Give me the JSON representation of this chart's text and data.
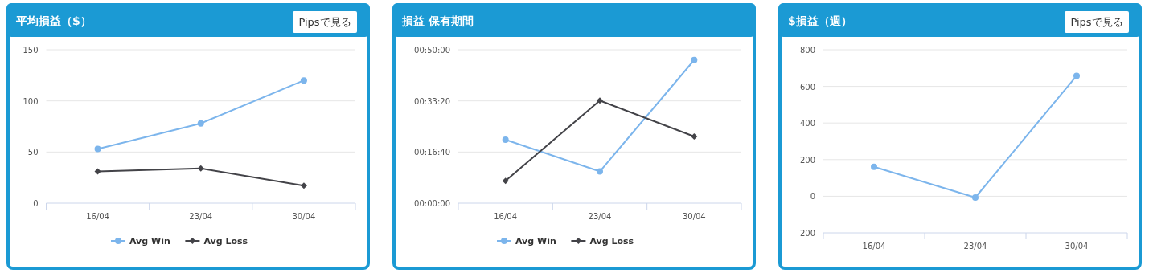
{
  "chart_data": [
    {
      "type": "line",
      "title": "平均損益（$）",
      "annotations": [
        "Pipsで見る"
      ],
      "categories": [
        "16/04",
        "23/04",
        "30/04"
      ],
      "ylim": [
        0,
        150
      ],
      "yticks": [
        0,
        50,
        100,
        150
      ],
      "grid": "y",
      "legend": "bottom",
      "series": [
        {
          "name": "Avg Win",
          "color": "#7cb5ec",
          "marker": "circle",
          "values": [
            53,
            78,
            120
          ]
        },
        {
          "name": "Avg Loss",
          "color": "#434348",
          "marker": "diamond",
          "values": [
            31,
            34,
            17
          ]
        }
      ]
    },
    {
      "type": "line",
      "title": "損益 保有期間",
      "categories": [
        "16/04",
        "23/04",
        "30/04"
      ],
      "ylim": [
        0,
        3000
      ],
      "yticks": [
        {
          "value": 0,
          "label": "00:00:00"
        },
        {
          "value": 1000,
          "label": "00:16:40"
        },
        {
          "value": 2000,
          "label": "00:33:20"
        },
        {
          "value": 3000,
          "label": "00:50:00"
        }
      ],
      "grid": "y",
      "legend": "bottom",
      "series": [
        {
          "name": "Avg Win",
          "color": "#7cb5ec",
          "marker": "circle",
          "values": [
            1240,
            620,
            2800
          ]
        },
        {
          "name": "Avg Loss",
          "color": "#434348",
          "marker": "diamond",
          "values": [
            436,
            2007,
            1303
          ]
        }
      ]
    },
    {
      "type": "line",
      "title": "$損益（週）",
      "annotations": [
        "Pipsで見る"
      ],
      "categories": [
        "16/04",
        "23/04",
        "30/04"
      ],
      "ylim": [
        -200,
        800
      ],
      "yticks": [
        -200,
        0,
        200,
        400,
        600,
        800
      ],
      "grid": "y",
      "series": [
        {
          "color": "#7cb5ec",
          "marker": "circle",
          "values": [
            161,
            -7,
            658
          ]
        }
      ]
    }
  ]
}
